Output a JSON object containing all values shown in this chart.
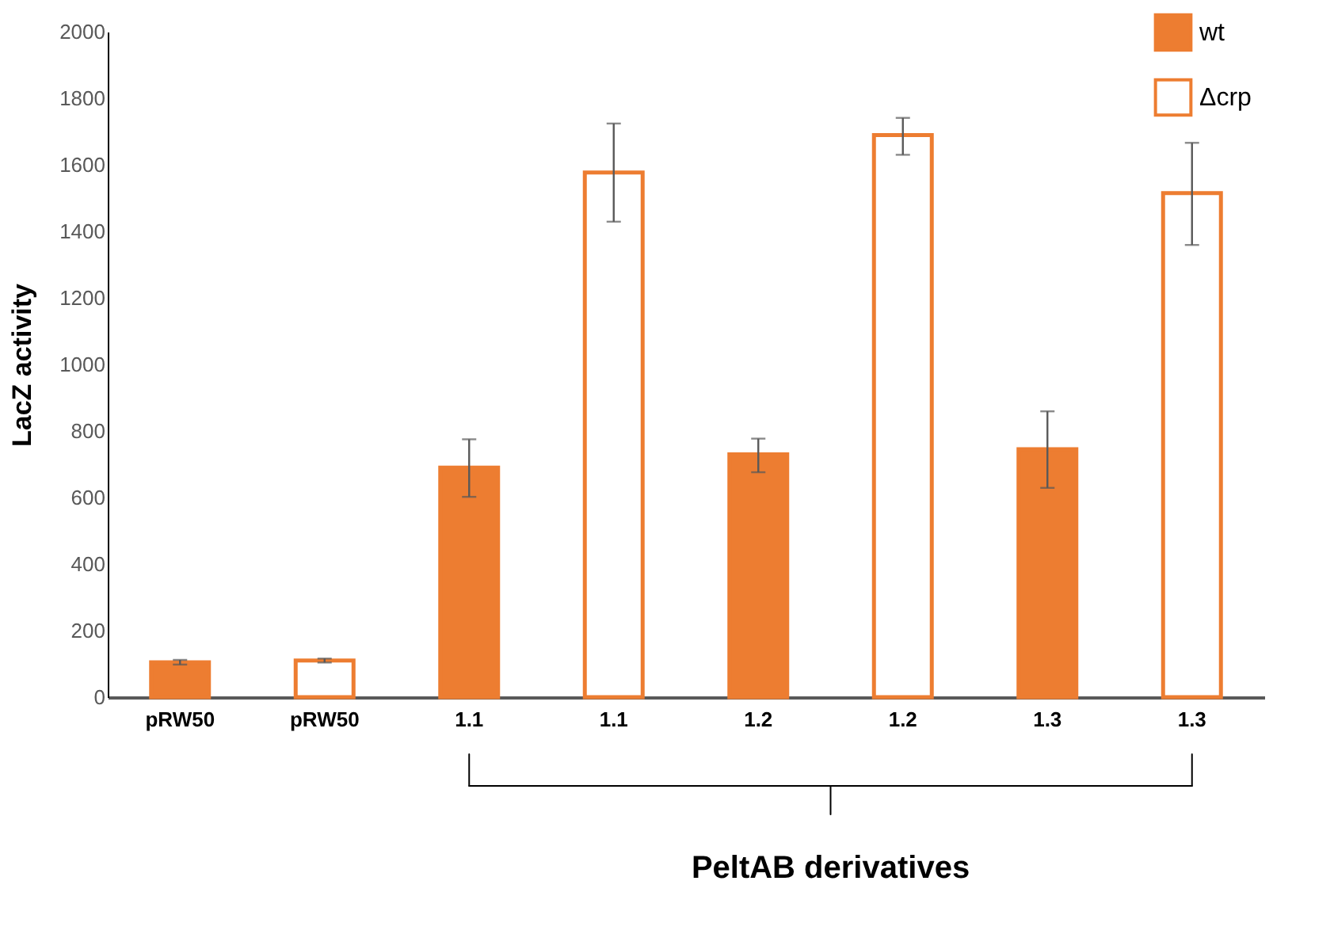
{
  "chart_data": {
    "type": "bar",
    "ylabel": "LacZ activity",
    "xlabel": "PeltAB derivatives",
    "categories": [
      "pRW50",
      "pRW50",
      "1.1",
      "1.1",
      "1.2",
      "1.2",
      "1.3",
      "1.3"
    ],
    "series": [
      {
        "name": "wt",
        "color": "#ed7d31",
        "values": [
          105,
          null,
          690,
          null,
          730,
          null,
          745,
          null
        ],
        "errors": [
          [
            98,
            112
          ],
          null,
          [
            602,
            775
          ],
          null,
          [
            676,
            777
          ],
          null,
          [
            629,
            859
          ],
          null
        ]
      },
      {
        "name": "Δcrp",
        "color": "#ed7d31",
        "values": [
          null,
          110,
          null,
          1577,
          null,
          1689,
          null,
          1515
        ],
        "errors": [
          null,
          [
            104,
            116
          ],
          null,
          [
            1429,
            1724
          ],
          null,
          [
            1630,
            1741
          ],
          null,
          [
            1359,
            1666
          ]
        ]
      }
    ],
    "ylim": [
      0,
      2000
    ],
    "yticks": [
      0,
      200,
      400,
      600,
      800,
      1000,
      1200,
      1400,
      1600,
      1800,
      2000
    ],
    "grid": false,
    "legend": "top right"
  }
}
